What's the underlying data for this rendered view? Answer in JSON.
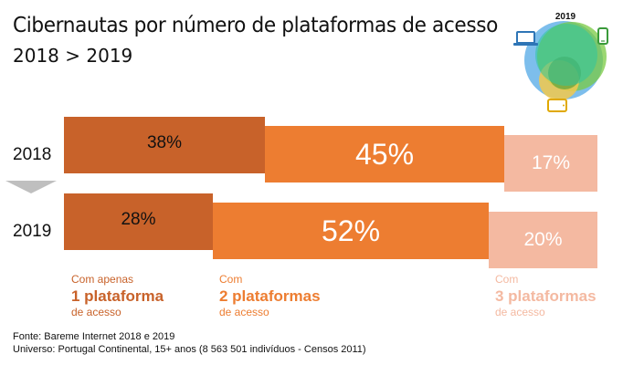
{
  "title": "Cibernautas por número de plataformas de acesso",
  "subtitle": "2018 > 2019",
  "venn": {
    "year_label": "2019"
  },
  "chart_data": {
    "type": "bar",
    "orientation": "horizontal-stacked-100",
    "title": "Cibernautas por número de plataformas de acesso",
    "subtitle": "2018 > 2019",
    "categories": [
      "2018",
      "2019"
    ],
    "series": [
      {
        "name": "Com apenas 1 plataforma de acesso",
        "values": [
          38,
          28
        ],
        "color": "#C8622A"
      },
      {
        "name": "Com 2 plataformas de acesso",
        "values": [
          45,
          52
        ],
        "color": "#ED7D31"
      },
      {
        "name": "Com 3 plataformas de acesso",
        "values": [
          17,
          20
        ],
        "color": "#F4B9A1"
      }
    ],
    "value_labels": [
      [
        "38%",
        "45%",
        "17%"
      ],
      [
        "28%",
        "52%",
        "20%"
      ]
    ],
    "unit": "%"
  },
  "legend": [
    {
      "line1": "Com apenas",
      "line2": "1 plataforma",
      "line3": "de acesso",
      "color": "#C8622A"
    },
    {
      "line1": "Com",
      "line2": "2 plataformas",
      "line3": "de acesso",
      "color": "#ED7D31"
    },
    {
      "line1": "Com",
      "line2": "3 plataformas",
      "line3": "de acesso",
      "color": "#F4B9A1"
    }
  ],
  "footer": {
    "source": "Fonte: Bareme Internet 2018 e 2019",
    "universe": "Universo: Portugal Continental, 15+ anos (8 563 501 indivíduos - Censos 2011)"
  },
  "icons": [
    "laptop-icon",
    "smartphone-icon",
    "tablet-icon"
  ]
}
